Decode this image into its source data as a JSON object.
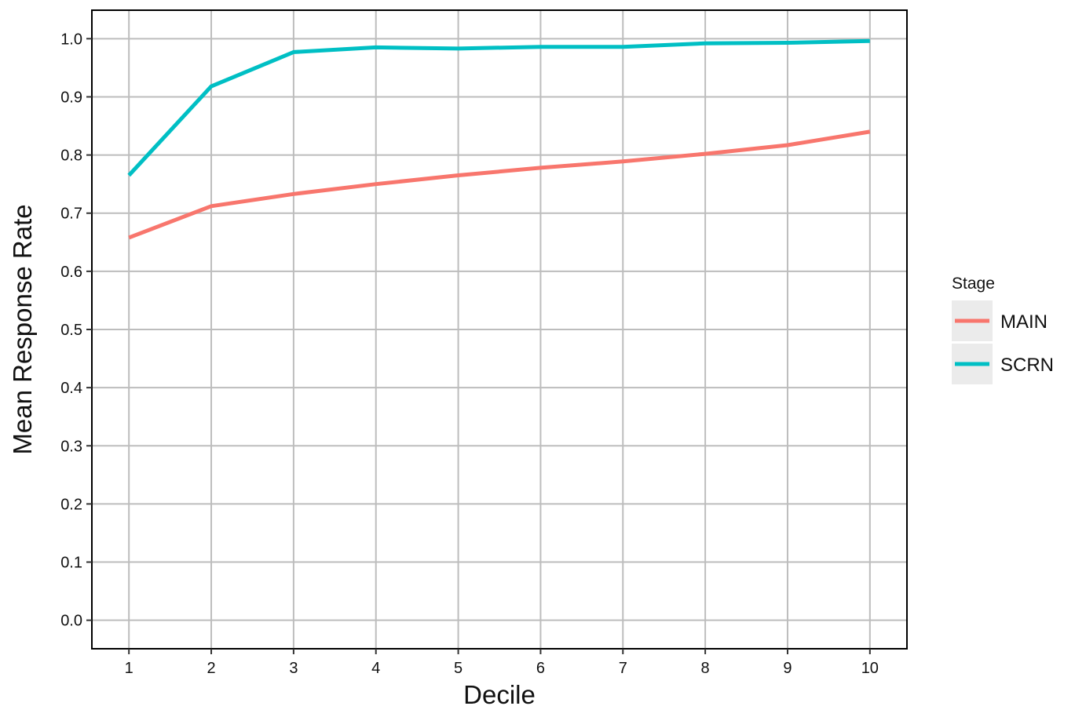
{
  "chart_data": {
    "type": "line",
    "title": "",
    "xlabel": "Decile",
    "ylabel": "Mean Response Rate",
    "x": [
      1,
      2,
      3,
      4,
      5,
      6,
      7,
      8,
      9,
      10
    ],
    "x_ticks": [
      "1",
      "2",
      "3",
      "4",
      "5",
      "6",
      "7",
      "8",
      "9",
      "10"
    ],
    "xlim": [
      0.55,
      10.45
    ],
    "y_ticks": [
      "0.0",
      "0.1",
      "0.2",
      "0.3",
      "0.4",
      "0.5",
      "0.6",
      "0.7",
      "0.8",
      "0.9",
      "1.0"
    ],
    "ylim": [
      -0.049,
      1.049
    ],
    "grid": true,
    "legend": {
      "title": "Stage",
      "placement": "right"
    },
    "series": [
      {
        "name": "MAIN",
        "color": "#F8766D",
        "values": [
          0.658,
          0.712,
          0.733,
          0.75,
          0.765,
          0.778,
          0.789,
          0.802,
          0.817,
          0.84
        ]
      },
      {
        "name": "SCRN",
        "color": "#00BFC4",
        "values": [
          0.765,
          0.918,
          0.977,
          0.985,
          0.983,
          0.986,
          0.986,
          0.992,
          0.993,
          0.996
        ]
      }
    ]
  }
}
